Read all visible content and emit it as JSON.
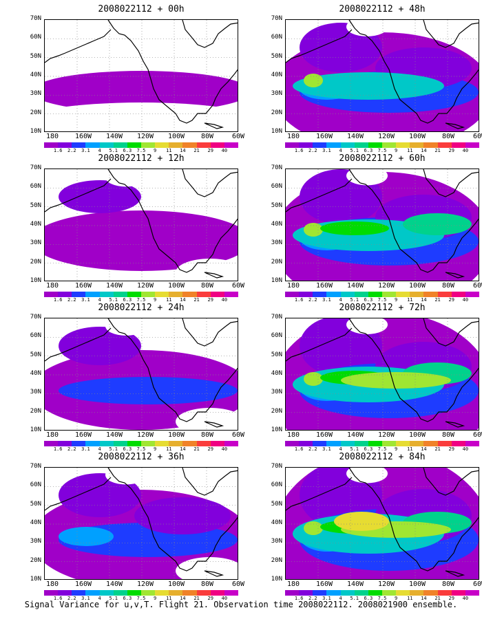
{
  "panels": [
    {
      "title": "2008022112 + 00h",
      "intensity": 0
    },
    {
      "title": "2008022112 + 48h",
      "intensity": 4
    },
    {
      "title": "2008022112 + 12h",
      "intensity": 1
    },
    {
      "title": "2008022112 + 60h",
      "intensity": 5
    },
    {
      "title": "2008022112 + 24h",
      "intensity": 2
    },
    {
      "title": "2008022112 + 72h",
      "intensity": 6
    },
    {
      "title": "2008022112 + 36h",
      "intensity": 3
    },
    {
      "title": "2008022112 + 84h",
      "intensity": 7
    }
  ],
  "map": {
    "lat_labels": [
      "70N",
      "60N",
      "50N",
      "40N",
      "30N",
      "20N",
      "10N"
    ],
    "lon_labels": [
      "180",
      "160W",
      "140W",
      "120W",
      "100W",
      "80W",
      "60W"
    ]
  },
  "colorbar": {
    "labels": [
      "1.6",
      "2.2",
      "3.1",
      "4",
      "5.1",
      "6.3",
      "7.5",
      "9",
      "11",
      "14",
      "21",
      "29",
      "40"
    ],
    "colors": [
      "#a000c8",
      "#8200dc",
      "#1e3cff",
      "#00a0ff",
      "#00c8c8",
      "#00d28c",
      "#00dc00",
      "#a0e632",
      "#e6dc32",
      "#e6af2d",
      "#f08228",
      "#fa3c3c",
      "#f00082"
    ]
  },
  "caption": "Signal Variance for u,v,T. Flight 21. Observation time 2008022112. 2008021900 ensemble."
}
